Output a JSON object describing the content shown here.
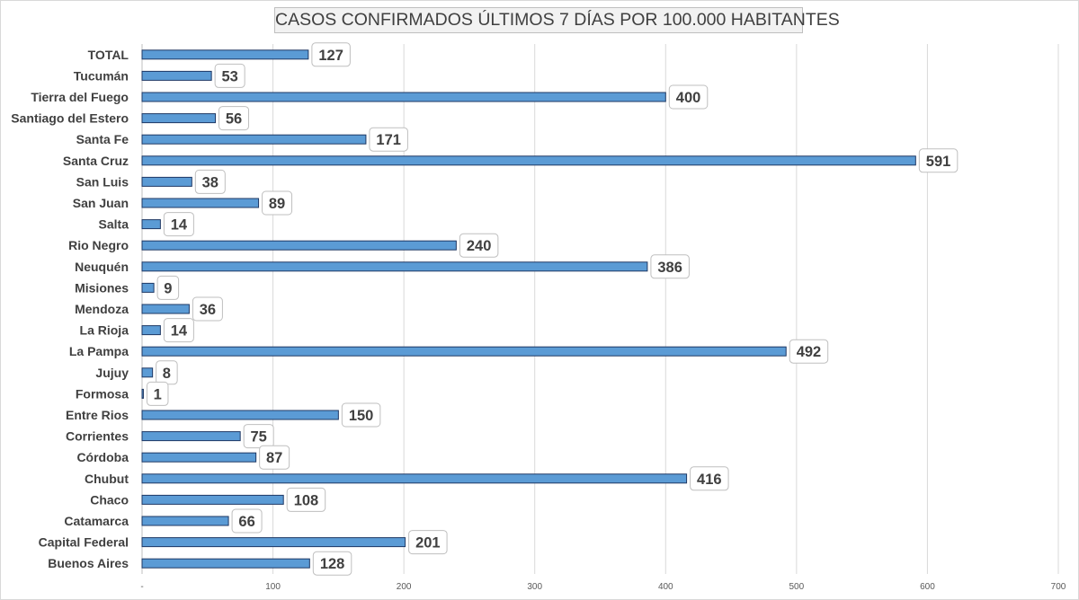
{
  "chart_data": {
    "type": "bar",
    "orientation": "horizontal",
    "title": "CASOS CONFIRMADOS ÚLTIMOS 7 DÍAS POR 100.000 HABITANTES",
    "categories": [
      "TOTAL",
      "Tucumán",
      "Tierra del Fuego",
      "Santiago del Estero",
      "Santa Fe",
      "Santa Cruz",
      "San Luis",
      "San Juan",
      "Salta",
      "Rio Negro",
      "Neuquén",
      "Misiones",
      "Mendoza",
      "La Rioja",
      "La Pampa",
      "Jujuy",
      "Formosa",
      "Entre Rios",
      "Corrientes",
      "Córdoba",
      "Chubut",
      "Chaco",
      "Catamarca",
      "Capital Federal",
      "Buenos Aires"
    ],
    "values": [
      127,
      53,
      400,
      56,
      171,
      591,
      38,
      89,
      14,
      240,
      386,
      9,
      36,
      14,
      492,
      8,
      1,
      150,
      75,
      87,
      416,
      108,
      66,
      201,
      128
    ],
    "data_labels": [
      "127",
      "53",
      "400",
      "56",
      "171",
      "591",
      "38",
      "89",
      "14",
      "240",
      "386",
      "9",
      "36",
      "14",
      "492",
      "8",
      "1",
      "150",
      "75",
      "87",
      "416",
      "108",
      "66",
      "201",
      "128"
    ],
    "x_ticks": [
      "-",
      "100",
      "200",
      "300",
      "400",
      "500",
      "600",
      "700"
    ],
    "xlim": [
      0,
      700
    ],
    "grid": true,
    "legend": "none",
    "colors": {
      "bar_fill": "#5b9bd5",
      "bar_border": "#1f3864",
      "grid": "#d9d9d9",
      "label_box_border": "#bfbfbf",
      "text": "#404040"
    }
  }
}
